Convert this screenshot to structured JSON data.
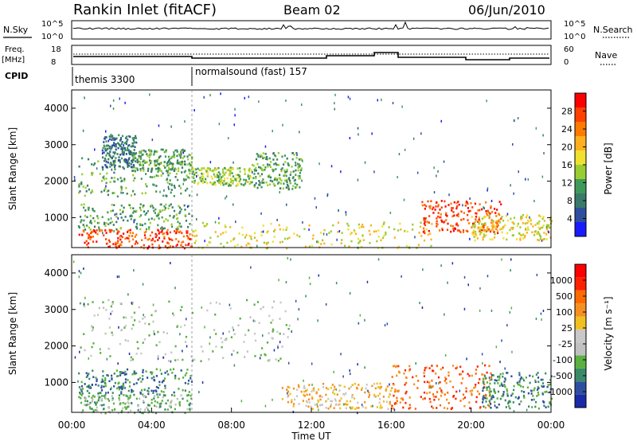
{
  "header": {
    "title": "Rankin Inlet (fitACF)",
    "beam": "Beam 02",
    "date": "06/Jun/2010"
  },
  "panels": {
    "nsky": {
      "left_label": "N.Sky",
      "right_label": "N.Search",
      "left_ticks": [
        "10^5",
        "10^0"
      ],
      "right_ticks": [
        "10^5",
        "10^0"
      ]
    },
    "freq": {
      "left_label_1": "Freq.",
      "left_label_2": "[MHz]",
      "right_label": "Nave",
      "left_ticks": [
        "18",
        "8"
      ],
      "right_ticks": [
        "60",
        "0"
      ]
    },
    "cpid": {
      "label": "CPID",
      "programs": [
        "themis 3300",
        "normalsound (fast) 157"
      ]
    }
  },
  "colors": {
    "power_scale": [
      "#1a1aff",
      "#2e4f9e",
      "#3a7a6a",
      "#3f9a5a",
      "#9acd32",
      "#f0e030",
      "#ffb020",
      "#ff7a00",
      "#ff4000",
      "#ff0000"
    ],
    "velocity_scale": [
      "#1a2aa8",
      "#2e4fa0",
      "#3a8a6a",
      "#5ab040",
      "#c0c0c0",
      "#c8c8c8",
      "#f0c020",
      "#f59020",
      "#ff6a00",
      "#ff2000",
      "#ff0000"
    ]
  },
  "chart_data": [
    {
      "type": "heatmap",
      "name": "power",
      "ylabel": "Slant Range [km]",
      "yticks": [
        "4000",
        "3000",
        "2000",
        "1000"
      ],
      "ylim": [
        180,
        4500
      ],
      "colorbar_label": "Power [dB]",
      "colorbar_ticks": [
        "28",
        "24",
        "20",
        "16",
        "12",
        "8",
        "4"
      ],
      "xlim": [
        0,
        24
      ],
      "xticks": [
        "00:00",
        "04:00",
        "08:00",
        "12:00",
        "16:00",
        "20:00",
        "00:00"
      ],
      "features": [
        {
          "t": [
            0.3,
            6.0
          ],
          "r": [
            1600,
            2700
          ],
          "level": 3
        },
        {
          "t": [
            1.5,
            3.2
          ],
          "r": [
            2400,
            3300
          ],
          "level": 2
        },
        {
          "t": [
            3.0,
            6.0
          ],
          "r": [
            2300,
            2900
          ],
          "level": 3
        },
        {
          "t": [
            0.3,
            6.0
          ],
          "r": [
            700,
            1400
          ],
          "level": 3
        },
        {
          "t": [
            0.3,
            6.0
          ],
          "r": [
            180,
            700
          ],
          "level": 8
        },
        {
          "t": [
            6.0,
            9.0
          ],
          "r": [
            1900,
            2400
          ],
          "level": 4
        },
        {
          "t": [
            9.0,
            11.5
          ],
          "r": [
            1800,
            2800
          ],
          "level": 3
        },
        {
          "t": [
            6.0,
            18.0
          ],
          "r": [
            180,
            900
          ],
          "level": 5
        },
        {
          "t": [
            17.5,
            21.5
          ],
          "r": [
            600,
            1500
          ],
          "level": 8
        },
        {
          "t": [
            20.0,
            24.0
          ],
          "r": [
            400,
            1100
          ],
          "level": 5
        }
      ]
    },
    {
      "type": "heatmap",
      "name": "velocity",
      "ylabel": "Slant Range [km]",
      "yticks": [
        "4000",
        "3000",
        "2000",
        "1000"
      ],
      "ylim": [
        180,
        4500
      ],
      "colorbar_label": "Velocity [m s⁻¹]",
      "colorbar_ticks": [
        "1000",
        "500",
        "100",
        "25",
        "-25",
        "-100",
        "-500",
        "-1000"
      ],
      "xlabel": "Time UT",
      "xlim": [
        0,
        24
      ],
      "xticks": [
        "00:00",
        "04:00",
        "08:00",
        "12:00",
        "16:00",
        "20:00",
        "00:00"
      ],
      "features": [
        {
          "t": [
            0.3,
            11.0
          ],
          "r": [
            1600,
            3300
          ],
          "level": 4
        },
        {
          "t": [
            0.3,
            6.0
          ],
          "r": [
            700,
            1400
          ],
          "level": 2
        },
        {
          "t": [
            0.3,
            6.0
          ],
          "r": [
            180,
            700
          ],
          "level": 3
        },
        {
          "t": [
            10.5,
            16.0
          ],
          "r": [
            300,
            1000
          ],
          "level": 6
        },
        {
          "t": [
            16.0,
            21.0
          ],
          "r": [
            300,
            1500
          ],
          "level": 8
        },
        {
          "t": [
            20.5,
            24.0
          ],
          "r": [
            300,
            1300
          ],
          "level": 2
        }
      ]
    }
  ]
}
